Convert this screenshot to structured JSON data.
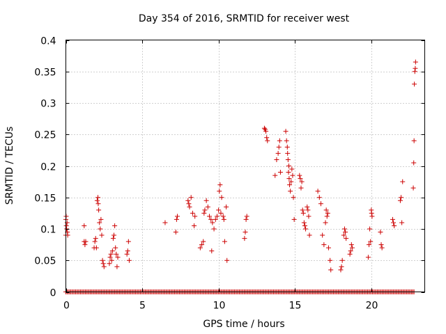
{
  "chart_data": {
    "type": "scatter",
    "title": "Day 354 of 2016, SRMTID for receiver west",
    "xlabel": "GPS time / hours",
    "ylabel": "SRMTID / TECUs",
    "xlim": [
      0,
      23.5
    ],
    "ylim": [
      0,
      0.4
    ],
    "xticks": [
      0,
      5,
      10,
      15,
      20
    ],
    "xtick_labels": [
      "0",
      "5",
      "10",
      "15",
      "20"
    ],
    "yticks": [
      0,
      0.05,
      0.1,
      0.15,
      0.2,
      0.25,
      0.3,
      0.35,
      0.4
    ],
    "ytick_labels": [
      "0",
      "0.05",
      "0.1",
      "0.15",
      "0.2",
      "0.25",
      "0.3",
      "0.35",
      "0.4"
    ],
    "grid": true,
    "marker": "plus",
    "color": "#cc0000",
    "zero_baseline": {
      "x_start": 0,
      "x_end": 22.8,
      "x_step": 0.08,
      "y": 0
    },
    "series": [
      {
        "name": "SRMTID",
        "x": [
          0.0,
          0.0,
          0.02,
          0.03,
          0.05,
          0.08,
          0.1,
          0.12,
          1.2,
          1.2,
          1.25,
          1.3,
          1.85,
          1.9,
          1.95,
          2.0,
          2.05,
          2.1,
          2.12,
          2.15,
          2.2,
          2.25,
          2.3,
          2.35,
          2.4,
          2.45,
          2.5,
          2.85,
          2.9,
          2.95,
          3.0,
          3.05,
          3.1,
          3.15,
          3.2,
          3.25,
          3.3,
          3.35,
          3.4,
          4.0,
          4.05,
          4.1,
          4.15,
          6.5,
          7.2,
          7.25,
          7.3,
          8.0,
          8.05,
          8.1,
          8.2,
          8.3,
          8.4,
          8.45,
          8.8,
          8.9,
          9.0,
          9.05,
          9.1,
          9.2,
          9.3,
          9.4,
          9.5,
          9.55,
          9.6,
          9.7,
          9.8,
          9.9,
          10.0,
          10.05,
          10.1,
          10.15,
          10.2,
          10.3,
          10.35,
          10.4,
          10.5,
          10.55,
          11.7,
          11.75,
          11.8,
          11.85,
          13.0,
          13.05,
          13.1,
          13.15,
          13.2,
          13.7,
          13.8,
          13.9,
          13.95,
          14.0,
          14.05,
          14.4,
          14.45,
          14.5,
          14.52,
          14.55,
          14.58,
          14.6,
          14.62,
          14.65,
          14.7,
          14.75,
          14.8,
          14.85,
          14.9,
          14.95,
          15.3,
          15.35,
          15.4,
          15.45,
          15.5,
          15.55,
          15.6,
          15.65,
          15.7,
          15.8,
          15.85,
          15.9,
          15.95,
          16.5,
          16.6,
          16.7,
          16.8,
          16.9,
          17.0,
          17.05,
          17.1,
          17.15,
          17.2,
          17.3,
          17.35,
          18.0,
          18.05,
          18.1,
          18.2,
          18.25,
          18.3,
          18.35,
          18.6,
          18.65,
          18.7,
          18.75,
          19.8,
          19.85,
          19.9,
          19.95,
          20.0,
          20.02,
          20.05,
          20.6,
          20.65,
          20.7,
          21.4,
          21.45,
          21.5,
          21.9,
          21.95,
          22.0,
          22.05,
          22.75,
          22.78,
          22.8,
          22.82,
          22.85,
          22.88,
          22.9
        ],
        "y": [
          0.09,
          0.115,
          0.12,
          0.105,
          0.1,
          0.11,
          0.095,
          0.09,
          0.105,
          0.08,
          0.075,
          0.08,
          0.07,
          0.08,
          0.085,
          0.07,
          0.145,
          0.15,
          0.14,
          0.13,
          0.11,
          0.1,
          0.115,
          0.09,
          0.05,
          0.045,
          0.04,
          0.045,
          0.055,
          0.06,
          0.05,
          0.065,
          0.085,
          0.09,
          0.105,
          0.07,
          0.06,
          0.04,
          0.055,
          0.06,
          0.065,
          0.08,
          0.05,
          0.11,
          0.095,
          0.115,
          0.12,
          0.145,
          0.14,
          0.135,
          0.15,
          0.125,
          0.105,
          0.12,
          0.07,
          0.075,
          0.08,
          0.125,
          0.13,
          0.145,
          0.135,
          0.12,
          0.115,
          0.065,
          0.11,
          0.1,
          0.115,
          0.12,
          0.13,
          0.16,
          0.17,
          0.125,
          0.15,
          0.12,
          0.115,
          0.08,
          0.135,
          0.05,
          0.085,
          0.095,
          0.115,
          0.12,
          0.26,
          0.258,
          0.255,
          0.245,
          0.24,
          0.185,
          0.21,
          0.22,
          0.23,
          0.24,
          0.19,
          0.255,
          0.24,
          0.23,
          0.22,
          0.21,
          0.19,
          0.2,
          0.18,
          0.17,
          0.16,
          0.175,
          0.195,
          0.185,
          0.15,
          0.115,
          0.185,
          0.18,
          0.165,
          0.175,
          0.13,
          0.125,
          0.11,
          0.105,
          0.1,
          0.135,
          0.13,
          0.12,
          0.09,
          0.16,
          0.15,
          0.14,
          0.09,
          0.075,
          0.11,
          0.13,
          0.12,
          0.125,
          0.07,
          0.05,
          0.035,
          0.035,
          0.04,
          0.05,
          0.09,
          0.1,
          0.095,
          0.085,
          0.06,
          0.065,
          0.075,
          0.07,
          0.055,
          0.075,
          0.1,
          0.08,
          0.13,
          0.125,
          0.12,
          0.095,
          0.075,
          0.07,
          0.115,
          0.11,
          0.105,
          0.145,
          0.15,
          0.11,
          0.175,
          0.165,
          0.205,
          0.24,
          0.33,
          0.35,
          0.355,
          0.365
        ]
      }
    ]
  }
}
